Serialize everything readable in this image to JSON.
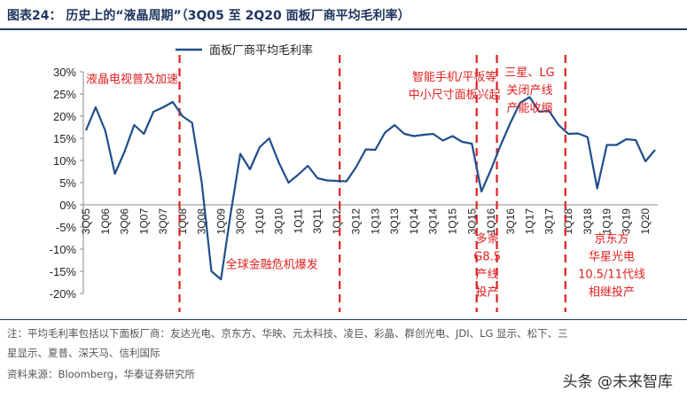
{
  "title": "图表24：   历史上的“液晶周期”（3Q05 至 2Q20 面板厂商平均毛利率）",
  "notes": [
    "注：平均毛利率包括以下面板厂商：友达光电、京东方、华映、元太科技、凌巨、彩晶、群创光电、JDI、LG 显示、松下、三",
    "星显示、夏普、深天马、信利国际",
    "资料来源：Bloomberg，华泰证券研究所"
  ],
  "watermark": "头条 @未来智库",
  "colors": {
    "line": "#1f4e8c",
    "annotation": "#e02020",
    "title": "#1f3560"
  },
  "chart_data": {
    "type": "line",
    "title": "",
    "xlabel": "",
    "ylabel": "",
    "ylim": [
      -0.2,
      0.3
    ],
    "yticks": [
      "-20%",
      "-15%",
      "-10%",
      "-5%",
      "0%",
      "5%",
      "10%",
      "15%",
      "20%",
      "25%",
      "30%"
    ],
    "xtick_labels": [
      "3Q05",
      "1Q06",
      "3Q06",
      "1Q07",
      "3Q07",
      "1Q08",
      "3Q08",
      "1Q09",
      "3Q09",
      "1Q10",
      "3Q10",
      "1Q11",
      "3Q11",
      "1Q12",
      "3Q12",
      "1Q13",
      "3Q13",
      "1Q14",
      "3Q14",
      "1Q15",
      "3Q15",
      "1Q16",
      "3Q16",
      "1Q17",
      "3Q17",
      "1Q18",
      "3Q18",
      "1Q19",
      "3Q19",
      "1Q20"
    ],
    "legend": {
      "position": "top",
      "entries": [
        "面板厂商平均毛利率"
      ]
    },
    "grid": false,
    "series": [
      {
        "name": "面板厂商平均毛利率",
        "x": [
          "3Q05",
          "4Q05",
          "1Q06",
          "2Q06",
          "3Q06",
          "4Q06",
          "1Q07",
          "2Q07",
          "3Q07",
          "4Q07",
          "1Q08",
          "2Q08",
          "3Q08",
          "4Q08",
          "1Q09",
          "2Q09",
          "3Q09",
          "4Q09",
          "1Q10",
          "2Q10",
          "3Q10",
          "4Q10",
          "1Q11",
          "2Q11",
          "3Q11",
          "4Q11",
          "1Q12",
          "2Q12",
          "3Q12",
          "4Q12",
          "1Q13",
          "2Q13",
          "3Q13",
          "4Q13",
          "1Q14",
          "2Q14",
          "3Q14",
          "4Q14",
          "1Q15",
          "2Q15",
          "3Q15",
          "4Q15",
          "1Q16",
          "2Q16",
          "3Q16",
          "4Q16",
          "1Q17",
          "2Q17",
          "3Q17",
          "4Q17",
          "1Q18",
          "2Q18",
          "3Q18",
          "4Q18",
          "1Q19",
          "2Q19",
          "3Q19",
          "4Q19",
          "1Q20",
          "2Q20"
        ],
        "values": [
          0.168,
          0.22,
          0.167,
          0.07,
          0.12,
          0.18,
          0.16,
          0.21,
          0.22,
          0.232,
          0.2,
          0.185,
          0.05,
          -0.15,
          -0.168,
          -0.02,
          0.115,
          0.08,
          0.13,
          0.15,
          0.095,
          0.05,
          0.068,
          0.088,
          0.06,
          0.055,
          0.054,
          0.053,
          0.085,
          0.125,
          0.124,
          0.163,
          0.18,
          0.16,
          0.155,
          0.158,
          0.16,
          0.145,
          0.155,
          0.142,
          0.138,
          0.03,
          0.08,
          0.135,
          0.185,
          0.23,
          0.243,
          0.21,
          0.212,
          0.18,
          0.16,
          0.161,
          0.153,
          0.037,
          0.135,
          0.135,
          0.148,
          0.146,
          0.098,
          0.124
        ]
      }
    ],
    "annotations": [
      {
        "text": [
          "液晶电视普及加速"
        ],
        "anchor": "start",
        "x_index": 0,
        "value": 0.275
      },
      {
        "text": [
          "全球金融危机爆发"
        ],
        "anchor": "start",
        "x_index": 14.5,
        "value": -0.143
      },
      {
        "text": [
          "智能手机/平板等",
          "中小尺寸面板兴起"
        ],
        "anchor": "middle",
        "x_index": 38.2,
        "value": 0.28
      },
      {
        "text": [
          "多条",
          "G8.5",
          "产线",
          "投产"
        ],
        "anchor": "middle",
        "x_index": 41.6,
        "value": -0.085
      },
      {
        "text": [
          "三星、LG",
          "关闭产线",
          "产能收缩"
        ],
        "anchor": "middle",
        "x_index": 46,
        "value": 0.29
      },
      {
        "text": [
          "京东方",
          "华星光电",
          "10.5/11代线",
          "相继投产"
        ],
        "anchor": "middle",
        "x_index": 54.5,
        "value": -0.085
      }
    ],
    "dividers": [
      9.7,
      26.3,
      40.5,
      42.6,
      49.7
    ]
  }
}
